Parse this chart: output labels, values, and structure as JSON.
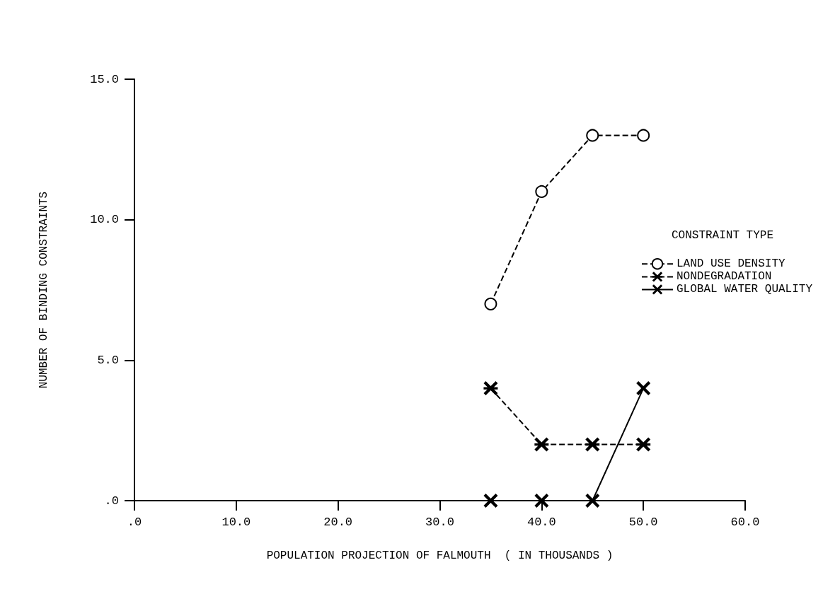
{
  "chart_data": {
    "type": "line",
    "xlabel": "POPULATION PROJECTION OF FALMOUTH  ( IN THOUSANDS )",
    "ylabel": "NUMBER OF BINDING CONSTRAINTS",
    "legend_title": "CONSTRAINT TYPE",
    "x": [
      35,
      40,
      45,
      50
    ],
    "series": [
      {
        "name": "LAND USE DENSITY",
        "color": "#000000",
        "values": [
          7,
          11,
          13,
          13
        ],
        "marker": "circle",
        "line_style": "dashed"
      },
      {
        "name": "NONDEGRADATION",
        "color": "#000000",
        "values": [
          4,
          2,
          2,
          2
        ],
        "marker": "star",
        "line_style": "dashed"
      },
      {
        "name": "GLOBAL WATER QUALITY",
        "color": "#000000",
        "values": [
          0,
          0,
          0,
          4
        ],
        "marker": "cross",
        "line_style": "solid"
      }
    ],
    "xlim": [
      0,
      60
    ],
    "xticks": [
      {
        "value": 0,
        "label": ".0"
      },
      {
        "value": 10,
        "label": "10.0"
      },
      {
        "value": 20,
        "label": "20.0"
      },
      {
        "value": 30,
        "label": "30.0"
      },
      {
        "value": 40,
        "label": "40.0"
      },
      {
        "value": 50,
        "label": "50.0"
      },
      {
        "value": 60,
        "label": "60.0"
      }
    ],
    "ylim": [
      0,
      15
    ],
    "yticks": [
      {
        "value": 0,
        "label": ".0"
      },
      {
        "value": 5,
        "label": "5.0"
      },
      {
        "value": 10,
        "label": "10.0"
      },
      {
        "value": 15,
        "label": "15.0"
      }
    ],
    "grid": false,
    "legend": "right"
  }
}
